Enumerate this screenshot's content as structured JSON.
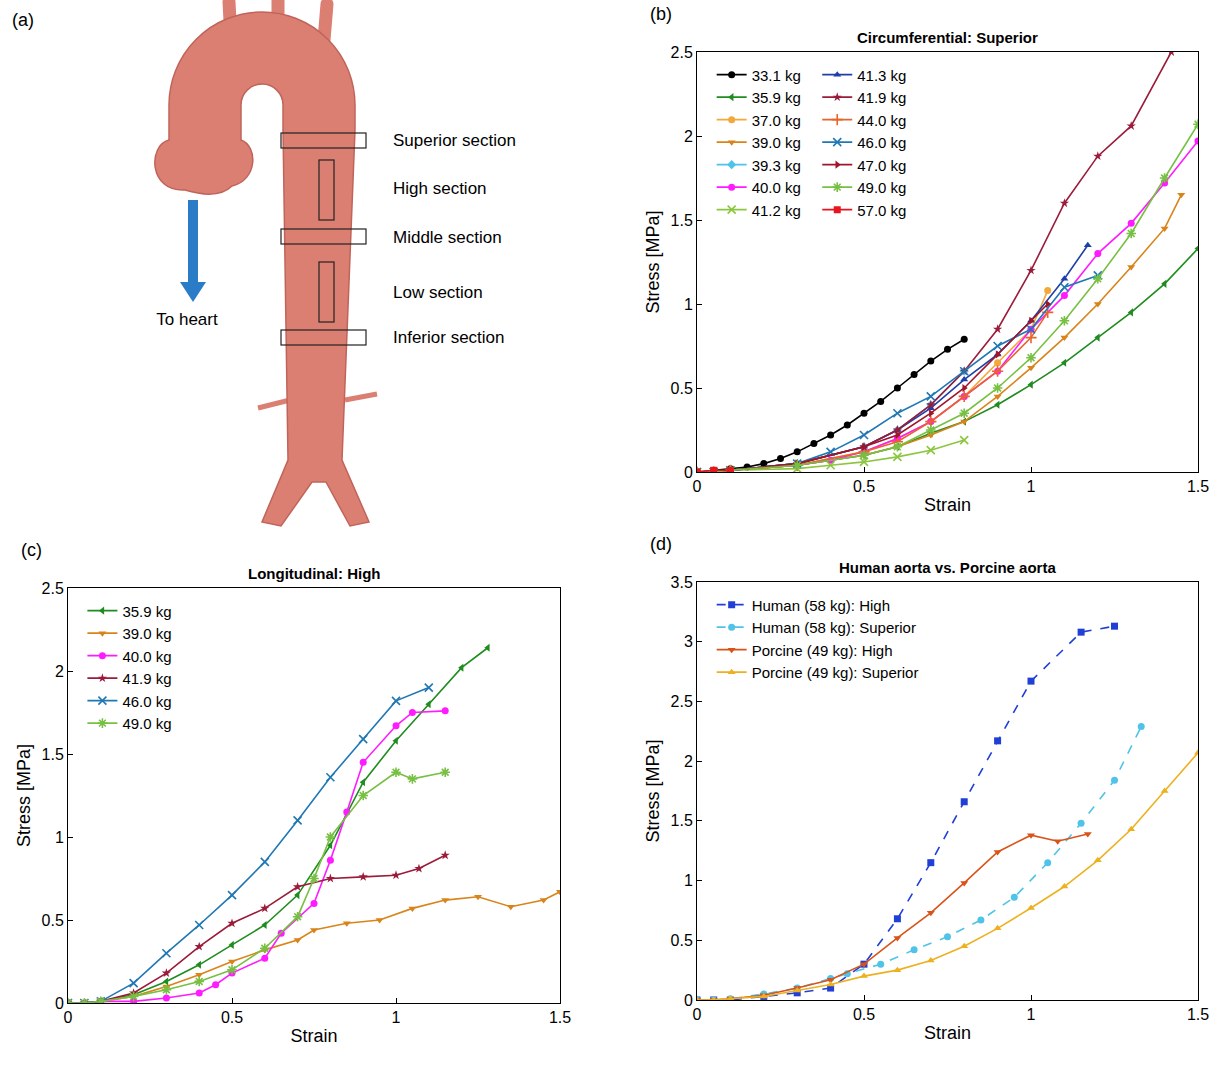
{
  "diagram": {
    "label": "(a)",
    "sections": [
      "Superior section",
      "High section",
      "Middle section",
      "Low section",
      "Inferior section"
    ],
    "arrow_label": "To heart"
  },
  "chart_data": [
    {
      "type": "line",
      "annotations": [
        "(b)"
      ],
      "title": "Circumferential: Superior",
      "x_label": "Strain",
      "y_label": "Stress [MPa]",
      "xlim": [
        0,
        1.5
      ],
      "ylim": [
        0,
        2.5
      ],
      "xticks": [
        0,
        0.5,
        1,
        1.5
      ],
      "yticks": [
        0,
        0.5,
        1,
        1.5,
        2,
        2.5
      ],
      "grid": false,
      "legend": "upper left",
      "series": [
        {
          "name": "33.1 kg",
          "color": "#000000",
          "marker": "circle",
          "line_style": "solid",
          "x": [
            0,
            0.05,
            0.1,
            0.15,
            0.2,
            0.25,
            0.3,
            0.35,
            0.4,
            0.45,
            0.5,
            0.55,
            0.6,
            0.65,
            0.7,
            0.75,
            0.8
          ],
          "values": [
            0,
            0.01,
            0.02,
            0.03,
            0.05,
            0.08,
            0.12,
            0.17,
            0.22,
            0.28,
            0.35,
            0.42,
            0.5,
            0.58,
            0.66,
            0.73,
            0.79
          ]
        },
        {
          "name": "35.9 kg",
          "color": "#1e8c1e",
          "marker": "triangle-left",
          "line_style": "solid",
          "x": [
            0,
            0.05,
            0.1,
            0.3,
            0.5,
            0.6,
            0.7,
            0.8,
            0.9,
            1.0,
            1.1,
            1.2,
            1.3,
            1.4,
            1.5
          ],
          "values": [
            0,
            0,
            0.01,
            0.04,
            0.1,
            0.15,
            0.23,
            0.3,
            0.4,
            0.52,
            0.65,
            0.8,
            0.95,
            1.12,
            1.33
          ]
        },
        {
          "name": "37.0 kg",
          "color": "#f2a93b",
          "marker": "circle",
          "line_style": "solid",
          "x": [
            0,
            0.05,
            0.1,
            0.3,
            0.5,
            0.6,
            0.7,
            0.8,
            0.9,
            1.0,
            1.05
          ],
          "values": [
            0,
            0,
            0.01,
            0.04,
            0.12,
            0.2,
            0.3,
            0.45,
            0.65,
            0.85,
            1.08
          ]
        },
        {
          "name": "39.0 kg",
          "color": "#d9841a",
          "marker": "triangle-down",
          "line_style": "solid",
          "x": [
            0,
            0.05,
            0.1,
            0.3,
            0.5,
            0.6,
            0.7,
            0.8,
            0.9,
            1.0,
            1.1,
            1.2,
            1.3,
            1.4,
            1.45
          ],
          "values": [
            0,
            0,
            0.01,
            0.04,
            0.1,
            0.15,
            0.22,
            0.3,
            0.45,
            0.62,
            0.8,
            1.0,
            1.22,
            1.45,
            1.65
          ]
        },
        {
          "name": "39.3 kg",
          "color": "#4fc3e8",
          "marker": "diamond",
          "line_style": "solid",
          "x": [
            0,
            0.05,
            0.1,
            0.3,
            0.5,
            0.6,
            0.7,
            0.8
          ],
          "values": [
            0,
            0,
            0.01,
            0.05,
            0.15,
            0.25,
            0.4,
            0.6
          ]
        },
        {
          "name": "40.0 kg",
          "color": "#ff1aff",
          "marker": "circle",
          "line_style": "solid",
          "x": [
            0,
            0.05,
            0.1,
            0.3,
            0.4,
            0.5,
            0.6,
            0.7,
            0.8,
            0.9,
            1.0,
            1.1,
            1.2,
            1.3,
            1.4,
            1.5
          ],
          "values": [
            0,
            0,
            0.01,
            0.04,
            0.07,
            0.12,
            0.2,
            0.3,
            0.45,
            0.6,
            0.85,
            1.05,
            1.3,
            1.48,
            1.72,
            1.97
          ]
        },
        {
          "name": "41.2 kg",
          "color": "#8cc63f",
          "marker": "x",
          "line_style": "solid",
          "x": [
            0,
            0.05,
            0.1,
            0.3,
            0.4,
            0.5,
            0.6,
            0.7,
            0.8
          ],
          "values": [
            0,
            0,
            0.01,
            0.02,
            0.04,
            0.06,
            0.09,
            0.13,
            0.19
          ]
        },
        {
          "name": "41.3 kg",
          "color": "#1f3fa8",
          "marker": "triangle-up",
          "line_style": "solid",
          "x": [
            0,
            0.05,
            0.1,
            0.3,
            0.5,
            0.6,
            0.7,
            0.8,
            0.9,
            1.0,
            1.1,
            1.17
          ],
          "values": [
            0,
            0,
            0.01,
            0.05,
            0.15,
            0.25,
            0.38,
            0.55,
            0.7,
            0.9,
            1.15,
            1.35
          ]
        },
        {
          "name": "41.9 kg",
          "color": "#9b1b3a",
          "marker": "star",
          "line_style": "solid",
          "x": [
            0,
            0.05,
            0.1,
            0.3,
            0.5,
            0.6,
            0.7,
            0.8,
            0.9,
            1.0,
            1.1,
            1.2,
            1.3,
            1.42
          ],
          "values": [
            0,
            0,
            0.01,
            0.05,
            0.15,
            0.25,
            0.4,
            0.6,
            0.85,
            1.2,
            1.6,
            1.88,
            2.06,
            2.5
          ]
        },
        {
          "name": "44.0 kg",
          "color": "#e8642a",
          "marker": "cross",
          "line_style": "solid",
          "x": [
            0,
            0.05,
            0.1,
            0.3,
            0.5,
            0.6,
            0.7,
            0.8,
            0.9,
            1.0,
            1.05
          ],
          "values": [
            0,
            0,
            0.01,
            0.04,
            0.12,
            0.18,
            0.3,
            0.45,
            0.6,
            0.8,
            0.95
          ]
        },
        {
          "name": "46.0 kg",
          "color": "#1f77b4",
          "marker": "x",
          "line_style": "solid",
          "x": [
            0,
            0.05,
            0.1,
            0.3,
            0.4,
            0.5,
            0.6,
            0.7,
            0.8,
            0.9,
            1.0,
            1.1,
            1.2
          ],
          "values": [
            0,
            0,
            0.01,
            0.05,
            0.12,
            0.22,
            0.35,
            0.45,
            0.6,
            0.75,
            0.85,
            1.1,
            1.17
          ]
        },
        {
          "name": "47.0 kg",
          "color": "#a0152a",
          "marker": "triangle-right",
          "line_style": "solid",
          "x": [
            0,
            0.05,
            0.1,
            0.3,
            0.5,
            0.6,
            0.7,
            0.8,
            0.9,
            1.0,
            1.05
          ],
          "values": [
            0,
            0,
            0.01,
            0.05,
            0.15,
            0.22,
            0.35,
            0.5,
            0.7,
            0.9,
            1.0
          ]
        },
        {
          "name": "49.0 kg",
          "color": "#77c043",
          "marker": "asterisk",
          "line_style": "solid",
          "x": [
            0,
            0.05,
            0.1,
            0.3,
            0.5,
            0.6,
            0.7,
            0.8,
            0.9,
            1.0,
            1.1,
            1.2,
            1.3,
            1.4,
            1.5
          ],
          "values": [
            0,
            0,
            0.01,
            0.04,
            0.1,
            0.15,
            0.25,
            0.35,
            0.5,
            0.68,
            0.9,
            1.15,
            1.42,
            1.75,
            2.07
          ]
        },
        {
          "name": "57.0 kg",
          "color": "#e8141e",
          "marker": "square",
          "line_style": "solid",
          "x": [
            0,
            0.05,
            0.1
          ],
          "values": [
            0,
            0.01,
            0.01
          ]
        }
      ]
    },
    {
      "type": "line",
      "annotations": [
        "(c)"
      ],
      "title": "Longitudinal: High",
      "x_label": "Strain",
      "y_label": "Stress [MPa]",
      "xlim": [
        0,
        1.5
      ],
      "ylim": [
        0,
        2.5
      ],
      "xticks": [
        0,
        0.5,
        1,
        1.5
      ],
      "yticks": [
        0,
        0.5,
        1,
        1.5,
        2,
        2.5
      ],
      "grid": false,
      "legend": "upper left",
      "series": [
        {
          "name": "35.9 kg",
          "color": "#1e8c1e",
          "marker": "triangle-left",
          "line_style": "solid",
          "x": [
            0,
            0.05,
            0.1,
            0.2,
            0.3,
            0.4,
            0.5,
            0.6,
            0.7,
            0.8,
            0.9,
            1.0,
            1.1,
            1.2,
            1.28
          ],
          "values": [
            0,
            0,
            0.01,
            0.05,
            0.13,
            0.23,
            0.35,
            0.47,
            0.65,
            0.95,
            1.33,
            1.58,
            1.8,
            2.02,
            2.14
          ]
        },
        {
          "name": "39.0 kg",
          "color": "#d9841a",
          "marker": "triangle-down",
          "line_style": "solid",
          "x": [
            0,
            0.05,
            0.1,
            0.2,
            0.3,
            0.4,
            0.5,
            0.6,
            0.7,
            0.75,
            0.85,
            0.95,
            1.05,
            1.15,
            1.25,
            1.35,
            1.45,
            1.5
          ],
          "values": [
            0,
            0,
            0.01,
            0.04,
            0.1,
            0.17,
            0.25,
            0.32,
            0.38,
            0.44,
            0.48,
            0.5,
            0.57,
            0.62,
            0.64,
            0.58,
            0.62,
            0.67
          ]
        },
        {
          "name": "40.0 kg",
          "color": "#ff1aff",
          "marker": "circle",
          "line_style": "solid",
          "x": [
            0,
            0.05,
            0.1,
            0.2,
            0.3,
            0.4,
            0.45,
            0.5,
            0.6,
            0.65,
            0.75,
            0.8,
            0.85,
            0.9,
            1.0,
            1.05,
            1.15
          ],
          "values": [
            0,
            0,
            0.01,
            0.01,
            0.03,
            0.06,
            0.11,
            0.18,
            0.27,
            0.42,
            0.6,
            0.86,
            1.15,
            1.45,
            1.67,
            1.75,
            1.76
          ]
        },
        {
          "name": "41.9 kg",
          "color": "#9b1b3a",
          "marker": "star",
          "line_style": "solid",
          "x": [
            0,
            0.05,
            0.1,
            0.2,
            0.3,
            0.4,
            0.5,
            0.6,
            0.7,
            0.8,
            0.9,
            1.0,
            1.07,
            1.15
          ],
          "values": [
            0,
            0,
            0.01,
            0.06,
            0.18,
            0.34,
            0.48,
            0.57,
            0.7,
            0.75,
            0.76,
            0.77,
            0.81,
            0.89
          ]
        },
        {
          "name": "46.0 kg",
          "color": "#1f77b4",
          "marker": "x",
          "line_style": "solid",
          "x": [
            0,
            0.05,
            0.1,
            0.2,
            0.3,
            0.4,
            0.5,
            0.6,
            0.7,
            0.8,
            0.9,
            1.0,
            1.1
          ],
          "values": [
            0,
            0,
            0.01,
            0.12,
            0.3,
            0.47,
            0.65,
            0.85,
            1.1,
            1.36,
            1.59,
            1.82,
            1.9
          ]
        },
        {
          "name": "49.0 kg",
          "color": "#77c043",
          "marker": "asterisk",
          "line_style": "solid",
          "x": [
            0,
            0.05,
            0.1,
            0.2,
            0.3,
            0.4,
            0.5,
            0.6,
            0.7,
            0.75,
            0.8,
            0.9,
            1.0,
            1.05,
            1.15
          ],
          "values": [
            0,
            0,
            0.01,
            0.04,
            0.08,
            0.13,
            0.2,
            0.33,
            0.52,
            0.75,
            1.0,
            1.25,
            1.39,
            1.35,
            1.39
          ]
        }
      ]
    },
    {
      "type": "line",
      "annotations": [
        "(d)"
      ],
      "title": "Human aorta vs. Porcine aorta",
      "x_label": "Strain",
      "y_label": "Stress [MPa]",
      "xlim": [
        0,
        1.5
      ],
      "ylim": [
        0,
        3.5
      ],
      "xticks": [
        0,
        0.5,
        1,
        1.5
      ],
      "yticks": [
        0,
        0.5,
        1,
        1.5,
        2,
        2.5,
        3,
        3.5
      ],
      "grid": false,
      "legend": "upper left",
      "series": [
        {
          "name": "Human (58 kg): High",
          "color": "#1f3fd6",
          "marker": "square",
          "line_style": "dash",
          "x": [
            0,
            0.05,
            0.1,
            0.2,
            0.3,
            0.4,
            0.5,
            0.6,
            0.7,
            0.8,
            0.9,
            1.0,
            1.15,
            1.25
          ],
          "values": [
            0,
            0,
            0,
            0.03,
            0.06,
            0.1,
            0.3,
            0.68,
            1.15,
            1.66,
            2.17,
            2.67,
            3.08,
            3.13
          ]
        },
        {
          "name": "Human (58 kg): Superior",
          "color": "#4fc3e8",
          "marker": "circle",
          "line_style": "dash",
          "x": [
            0,
            0.05,
            0.1,
            0.2,
            0.3,
            0.4,
            0.45,
            0.55,
            0.65,
            0.75,
            0.85,
            0.95,
            1.05,
            1.15,
            1.25,
            1.33
          ],
          "values": [
            0,
            0,
            0.01,
            0.05,
            0.1,
            0.18,
            0.22,
            0.3,
            0.42,
            0.53,
            0.67,
            0.86,
            1.15,
            1.48,
            1.84,
            2.29
          ]
        },
        {
          "name": "Porcine (49 kg): High",
          "color": "#d95319",
          "marker": "triangle-down",
          "line_style": "solid",
          "x": [
            0,
            0.05,
            0.1,
            0.2,
            0.3,
            0.4,
            0.5,
            0.6,
            0.7,
            0.8,
            0.9,
            1.0,
            1.08,
            1.17
          ],
          "values": [
            0,
            0,
            0.01,
            0.04,
            0.1,
            0.17,
            0.3,
            0.52,
            0.73,
            0.98,
            1.24,
            1.38,
            1.33,
            1.39
          ]
        },
        {
          "name": "Porcine (49 kg): Superior",
          "color": "#edb120",
          "marker": "triangle-up",
          "line_style": "solid",
          "x": [
            0,
            0.05,
            0.1,
            0.2,
            0.3,
            0.4,
            0.5,
            0.6,
            0.7,
            0.8,
            0.9,
            1.0,
            1.1,
            1.2,
            1.3,
            1.4,
            1.5
          ],
          "values": [
            0,
            0,
            0.01,
            0.03,
            0.08,
            0.13,
            0.2,
            0.25,
            0.33,
            0.45,
            0.6,
            0.77,
            0.95,
            1.17,
            1.43,
            1.75,
            2.07
          ]
        }
      ]
    }
  ]
}
